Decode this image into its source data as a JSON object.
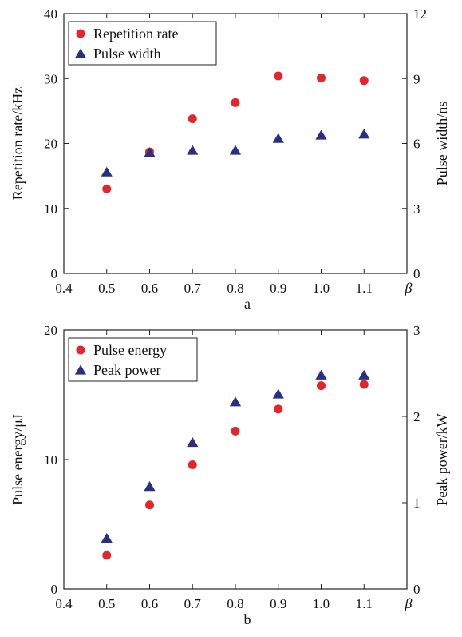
{
  "chart_data": [
    {
      "type": "scatter",
      "panel_label": "a",
      "x": [
        0.5,
        0.6,
        0.7,
        0.8,
        0.9,
        1.0,
        1.1
      ],
      "xlabel": "β",
      "xlim": [
        0.4,
        1.2
      ],
      "xticks": [
        "0.4",
        "0.5",
        "0.6",
        "0.7",
        "0.8",
        "0.9",
        "1.0",
        "1.1"
      ],
      "ylabel_left": "Repetition rate/kHz",
      "ylim_left": [
        0,
        40
      ],
      "yticks_left": [
        "0",
        "10",
        "20",
        "30",
        "40"
      ],
      "ylabel_right": "Pulse width/ns",
      "ylim_right": [
        0,
        12
      ],
      "yticks_right": [
        "0",
        "3",
        "6",
        "9",
        "12"
      ],
      "legend_position": "top-left",
      "grid": false,
      "series": [
        {
          "name": "Repetition rate",
          "axis": "left",
          "marker": "circle",
          "color": "#e3262b",
          "values": [
            13.0,
            18.7,
            23.8,
            26.3,
            30.4,
            30.1,
            29.7
          ]
        },
        {
          "name": "Pulse width",
          "axis": "right",
          "marker": "triangle",
          "color": "#2b2f84",
          "values": [
            4.65,
            5.55,
            5.65,
            5.65,
            6.2,
            6.35,
            6.4
          ]
        }
      ]
    },
    {
      "type": "scatter",
      "panel_label": "b",
      "x": [
        0.5,
        0.6,
        0.7,
        0.8,
        0.9,
        1.0,
        1.1
      ],
      "xlabel": "β",
      "xlim": [
        0.4,
        1.2
      ],
      "xticks": [
        "0.4",
        "0.5",
        "0.6",
        "0.7",
        "0.8",
        "0.9",
        "1.0",
        "1.1"
      ],
      "ylabel_left": "Pulse energy/μJ",
      "ylim_left": [
        0,
        20
      ],
      "yticks_left": [
        "0",
        "10",
        "20"
      ],
      "ylabel_right": "Peak power/kW",
      "ylim_right": [
        0,
        3
      ],
      "yticks_right": [
        "0",
        "1",
        "2",
        "3"
      ],
      "legend_position": "top-left",
      "grid": false,
      "series": [
        {
          "name": "Pulse energy",
          "axis": "left",
          "marker": "circle",
          "color": "#e3262b",
          "values": [
            2.6,
            6.5,
            9.6,
            12.2,
            13.9,
            15.7,
            15.8
          ]
        },
        {
          "name": "Peak power",
          "axis": "right",
          "marker": "triangle",
          "color": "#2b2f84",
          "values": [
            0.58,
            1.18,
            1.69,
            2.16,
            2.25,
            2.47,
            2.47
          ]
        }
      ]
    }
  ]
}
